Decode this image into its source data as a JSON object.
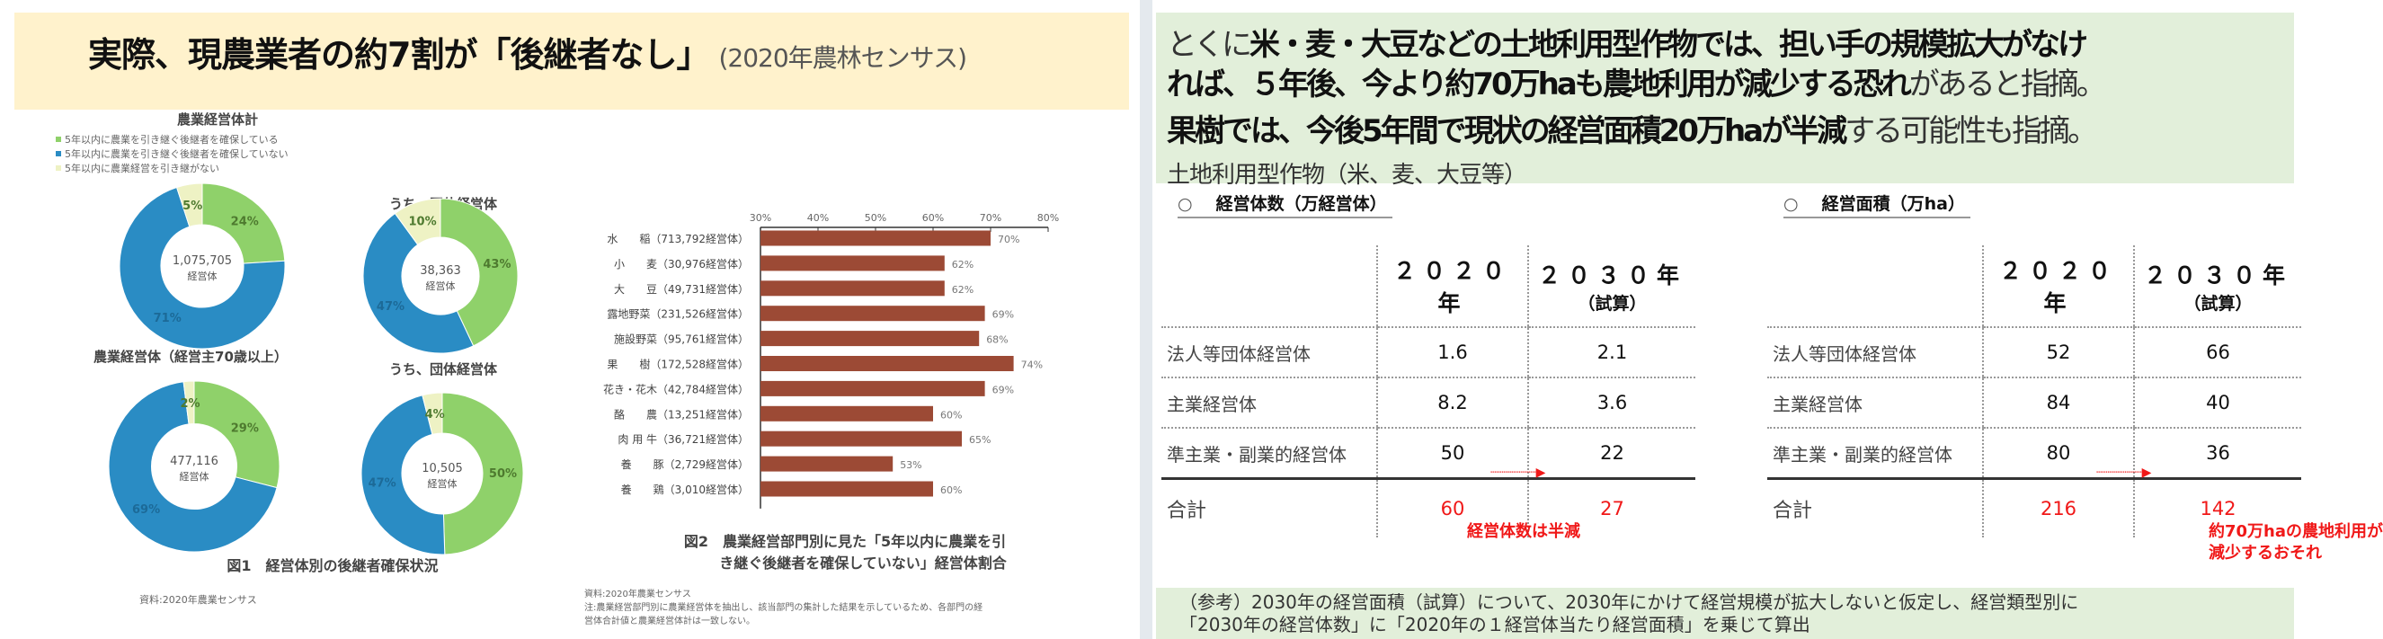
{
  "left": {
    "title": "実際、現農業者の約7割が「後継者なし」",
    "title_source": "(2020年農林センサス)",
    "fig1": {
      "legend": [
        "5年以内に農業を引き継ぐ後継者を確保している",
        "5年以内に農業を引き継ぐ後継者を確保していない",
        "5年以内に農業経営を引き継がない"
      ],
      "caption": "図1　経営体別の後継者確保状況",
      "source": "資料:2020年農業センサス"
    },
    "fig2": {
      "caption_line1": "図2　農業経営部門別に見た「5年以内に農業を引",
      "caption_line2": "き継ぐ後継者を確保していない」経営体割合",
      "source": "資料:2020年農業センサス",
      "note_line1": "注:農業経営部門別に農業経営体を抽出し、該当部門の集計した結果を示しているため、各部門の経",
      "note_line2": "営体合計値と農業経営体計は一致しない。"
    }
  },
  "chart_data": [
    {
      "type": "pie",
      "title": "農業経営体計",
      "center_label": "1,075,705",
      "center_unit": "経営体",
      "categories": [
        "確保している",
        "確保していない",
        "引き継がない"
      ],
      "values": [
        24,
        71,
        5
      ],
      "labels": [
        "24%",
        "71%",
        "5%"
      ]
    },
    {
      "type": "pie",
      "title": "うち、団体経営体",
      "center_label": "38,363",
      "center_unit": "経営体",
      "categories": [
        "確保している",
        "確保していない",
        "引き継がない"
      ],
      "values": [
        43,
        47,
        10
      ],
      "labels": [
        "43%",
        "47%",
        "10%"
      ]
    },
    {
      "type": "pie",
      "title": "農業経営体（経営主70歳以上）",
      "center_label": "477,116",
      "center_unit": "経営体",
      "categories": [
        "確保している",
        "確保していない",
        "引き継がない"
      ],
      "values": [
        29,
        69,
        2
      ],
      "labels": [
        "29%",
        "69%",
        "2%"
      ]
    },
    {
      "type": "pie",
      "title": "うち、団体経営体",
      "center_label": "10,505",
      "center_unit": "経営体",
      "categories": [
        "確保している",
        "確保していない",
        "引き継がない"
      ],
      "values": [
        50,
        47,
        4
      ],
      "labels": [
        "50%",
        "47%",
        "4%"
      ]
    },
    {
      "type": "bar",
      "orientation": "horizontal",
      "categories": [
        "水　　稲（713,792経営体）",
        "小　　麦（30,976経営体）",
        "大　　豆（49,731経営体）",
        "露地野菜（231,526経営体）",
        "施設野菜（95,761経営体）",
        "果　　樹（172,528経営体）",
        "花き・花木（42,784経営体）",
        "酪　　農（13,251経営体）",
        "肉 用 牛（36,721経営体）",
        "養　　豚（2,729経営体）",
        "養　　鶏（3,010経営体）"
      ],
      "values": [
        70,
        62,
        62,
        69,
        68,
        74,
        69,
        60,
        65,
        53,
        60
      ],
      "xlim": [
        30,
        80
      ],
      "xticks": [
        "30%",
        "40%",
        "50%",
        "60%",
        "70%",
        "80%"
      ]
    }
  ],
  "colors": {
    "green": "#8fd16a",
    "blue": "#2a8cc4",
    "cream": "#eef2c4",
    "bar": "#9c4a35",
    "header_yellow": "#fff2cc",
    "panel_green": "#e2efda",
    "red": "#f01818"
  },
  "right": {
    "line1_a": "とくに",
    "line1_b": "米・麦・大豆などの土地利用型作物では、担い手の規模拡大がなけ",
    "line2_a": "れば、５年後、今より約70万haも農地利用が減少する恐れ",
    "line2_b": "があると指摘。",
    "line3_a": "果樹では、今後5年間で現状の経営面積20万haが半減",
    "line3_b": "する可能性も指摘。",
    "line4": "土地利用型作物（米、麦、大豆等）",
    "table1": {
      "circle": "○",
      "title": "経営体数（万経営体）",
      "col2020": "２０２０年",
      "col2030": "２０３０年",
      "col2030_sub": "（試算）",
      "rows": [
        {
          "label": "法人等団体経営体",
          "v2020": "1.6",
          "v2030": "2.1"
        },
        {
          "label": "主業経営体",
          "v2020": "8.2",
          "v2030": "3.6"
        },
        {
          "label": "準主業・副業的経営体",
          "v2020": "50",
          "v2030": "22"
        }
      ],
      "total_label": "合計",
      "total_2020": "60",
      "total_2030": "27",
      "note": "経営体数は半減"
    },
    "table2": {
      "circle": "○",
      "title": "経営面積（万ha）",
      "col2020": "２０２０年",
      "col2030": "２０３０年",
      "col2030_sub": "（試算）",
      "rows": [
        {
          "label": "法人等団体経営体",
          "v2020": "52",
          "v2030": "66"
        },
        {
          "label": "主業経営体",
          "v2020": "84",
          "v2030": "40"
        },
        {
          "label": "準主業・副業的経営体",
          "v2020": "80",
          "v2030": "36"
        }
      ],
      "total_label": "合計",
      "total_2020": "216",
      "total_2030": "142",
      "note_line1": "約70万haの農地利用が",
      "note_line2": "減少するおそれ"
    },
    "bottom_line1": "（参考）2030年の経営面積（試算）について、2030年にかけて経営規模が拡大しないと仮定し、経営類型別に",
    "bottom_line2": "「2030年の経営体数」に「2020年の１経営体当たり経営面積」を乗じて算出"
  }
}
